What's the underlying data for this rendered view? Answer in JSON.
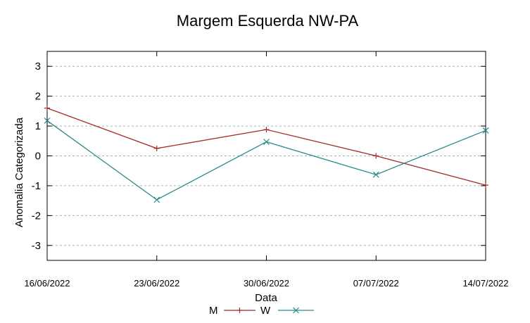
{
  "chart_data": {
    "type": "line",
    "title": "Margem Esquerda NW-PA",
    "xlabel": "Data",
    "ylabel": "Anomalia Categorizada",
    "categories": [
      "16/06/2022",
      "23/06/2022",
      "30/06/2022",
      "07/07/2022",
      "14/07/2022"
    ],
    "ylim": [
      -3.5,
      3.5
    ],
    "yticks": [
      3,
      2,
      1,
      0,
      -1,
      -2,
      -3
    ],
    "grid": true,
    "legend_position": "bottom",
    "series": [
      {
        "name": "M",
        "color": "#a52a2a",
        "marker": "plus",
        "values": [
          1.6,
          0.25,
          0.88,
          0.0,
          -0.98
        ]
      },
      {
        "name": "W",
        "color": "#2a8a8a",
        "marker": "cross",
        "values": [
          1.18,
          -1.47,
          0.47,
          -0.63,
          0.85
        ]
      }
    ]
  }
}
